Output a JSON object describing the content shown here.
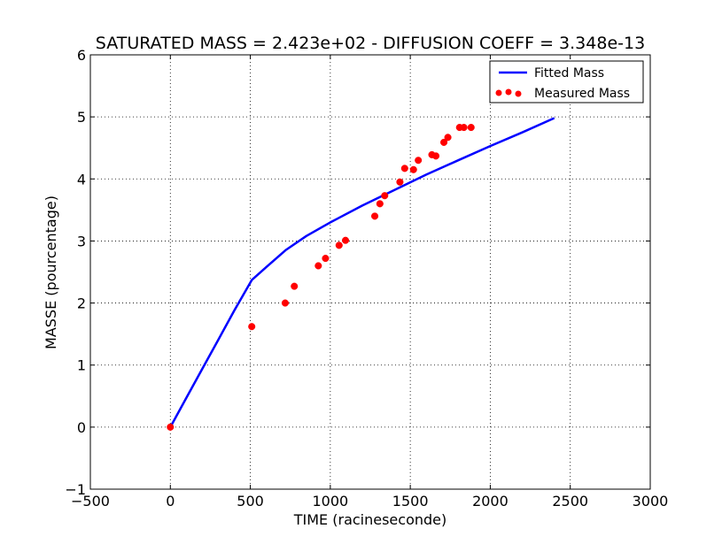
{
  "chart_data": {
    "type": "line",
    "title": "SATURATED MASS = 2.423e+02 - DIFFUSION COEFF = 3.348e-13",
    "xlabel": "TIME (racineseconde)",
    "ylabel": "MASSE (pourcentage)",
    "xlim": [
      -500,
      3000
    ],
    "ylim": [
      -1,
      6
    ],
    "xticks": [
      -500,
      0,
      500,
      1000,
      1500,
      2000,
      2500,
      3000
    ],
    "xtick_labels": [
      "−500",
      "0",
      "500",
      "1000",
      "1500",
      "2000",
      "2500",
      "3000"
    ],
    "yticks": [
      -1,
      0,
      1,
      2,
      3,
      4,
      5,
      6
    ],
    "ytick_labels": [
      "−1",
      "0",
      "1",
      "2",
      "3",
      "4",
      "5",
      "6"
    ],
    "grid": true,
    "legend_position": "top-right",
    "series": [
      {
        "name": "Fitted Mass",
        "kind": "line",
        "color": "#0000ff",
        "x": [
          0,
          100,
          200,
          300,
          400,
          509,
          600,
          720,
          850,
          1000,
          1200,
          1400,
          1600,
          1800,
          2000,
          2200,
          2400
        ],
        "y": [
          0,
          0.47,
          0.94,
          1.41,
          1.88,
          2.37,
          2.58,
          2.85,
          3.08,
          3.3,
          3.57,
          3.82,
          4.07,
          4.3,
          4.53,
          4.75,
          4.98
        ]
      },
      {
        "name": "Measured Mass",
        "kind": "scatter",
        "color": "#ff0000",
        "x": [
          0,
          509,
          718,
          775,
          925,
          970,
          1055,
          1095,
          1278,
          1310,
          1340,
          1435,
          1465,
          1520,
          1550,
          1635,
          1660,
          1710,
          1735,
          1808,
          1835,
          1880
        ],
        "y": [
          0,
          1.62,
          2.0,
          2.27,
          2.6,
          2.72,
          2.93,
          3.01,
          3.4,
          3.6,
          3.73,
          3.95,
          4.17,
          4.15,
          4.3,
          4.39,
          4.37,
          4.59,
          4.67,
          4.83,
          4.83,
          4.83
        ]
      }
    ]
  }
}
